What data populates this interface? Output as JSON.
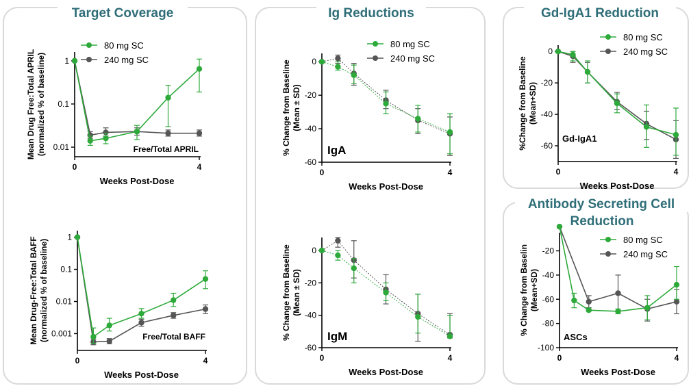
{
  "panels": {
    "target_coverage": {
      "title": "Target Coverage"
    },
    "ig_reductions": {
      "title": "Ig Reductions"
    },
    "gd_iga1": {
      "title": "Gd-IgA1  Reduction"
    },
    "asc": {
      "title_line1": "Antibody  Secreting Cell",
      "title_line2": "Reduction"
    }
  },
  "colors": {
    "series_80": "#2eaa3b",
    "series_240": "#555555",
    "title": "#2f6e78"
  },
  "chart_data": [
    {
      "id": "april",
      "type": "line",
      "yscale": "log",
      "xlabel": "Weeks Post-Dose",
      "ylabel_lines": [
        "Mean Drug Free:Total APRIL",
        "(normalized % of baseline)"
      ],
      "annotation": "Free/Total APRIL",
      "ylim": [
        0.006,
        1.6
      ],
      "yticks": [
        1,
        0.1,
        0.01
      ],
      "ytick_labels": [
        "1",
        "0.1",
        "0.01"
      ],
      "xlim": [
        0,
        4
      ],
      "xticks": [
        0,
        4
      ],
      "xtick_labels": [
        "0",
        "4"
      ],
      "legend": "top-right",
      "series": [
        {
          "name": "80 mg SC",
          "color": "#2eaa3b",
          "x": [
            0,
            0.5,
            1,
            2,
            3,
            4
          ],
          "y": [
            1,
            0.014,
            0.016,
            0.023,
            0.14,
            0.65
          ],
          "lo": [
            null,
            0.011,
            0.012,
            0.015,
            0.03,
            0.19
          ],
          "hi": [
            null,
            0.018,
            0.021,
            0.032,
            0.27,
            1.1
          ]
        },
        {
          "name": "240 mg SC",
          "color": "#555555",
          "x": [
            0,
            0.5,
            1,
            2,
            3,
            4
          ],
          "y": [
            1,
            0.019,
            0.022,
            0.023,
            0.021,
            0.021
          ],
          "lo": [
            null,
            0.016,
            0.018,
            0.019,
            0.018,
            0.018
          ],
          "hi": [
            null,
            0.023,
            0.028,
            0.028,
            0.025,
            0.025
          ]
        }
      ]
    },
    {
      "id": "baff",
      "type": "line",
      "yscale": "log",
      "xlabel": "Weeks Post-Dose",
      "ylabel_lines": [
        "Mean Drug-Free:Total BAFF",
        "(normalized % of baseline)"
      ],
      "annotation": "Free/Total BAFF",
      "ylim": [
        0.0003,
        1.6
      ],
      "yticks": [
        1,
        0.1,
        0.01,
        0.001
      ],
      "ytick_labels": [
        "1",
        "0.1",
        "0.01",
        "0.001"
      ],
      "xlim": [
        0,
        4
      ],
      "xticks": [
        0,
        4
      ],
      "xtick_labels": [
        "0",
        "4"
      ],
      "legend": "none",
      "series": [
        {
          "name": "80 mg SC",
          "color": "#2eaa3b",
          "x": [
            0,
            0.5,
            1,
            2,
            3,
            4
          ],
          "y": [
            1,
            0.0008,
            0.0018,
            0.0042,
            0.011,
            0.05
          ],
          "lo": [
            null,
            0.0005,
            0.0012,
            0.003,
            0.007,
            0.025
          ],
          "hi": [
            null,
            0.0015,
            0.003,
            0.006,
            0.018,
            0.09
          ]
        },
        {
          "name": "240 mg SC",
          "color": "#555555",
          "x": [
            0,
            0.5,
            1,
            2,
            3,
            4
          ],
          "y": [
            1,
            0.00055,
            0.00058,
            0.0022,
            0.0037,
            0.0058
          ],
          "lo": [
            null,
            0.00045,
            0.00048,
            0.0017,
            0.003,
            0.0042
          ],
          "hi": [
            null,
            0.00068,
            0.0007,
            0.0028,
            0.0045,
            0.0078
          ]
        }
      ]
    },
    {
      "id": "iga",
      "type": "line",
      "yscale": "linear",
      "xlabel": "Weeks Post-Dose",
      "ylabel_lines": [
        "% Change from Baseline",
        "(Mean ± SD)"
      ],
      "annotation": "IgA",
      "ylim": [
        -60,
        5
      ],
      "yticks": [
        0,
        -20,
        -40,
        -60
      ],
      "ytick_labels": [
        "0",
        "-20",
        "-40",
        "-60"
      ],
      "xlim": [
        0,
        4
      ],
      "xticks": [
        0,
        4
      ],
      "xtick_labels": [
        "0",
        "4"
      ],
      "legend": "top-right",
      "series": [
        {
          "name": "80 mg SC",
          "color": "#2eaa3b",
          "x": [
            0,
            0.5,
            1,
            2,
            3,
            4
          ],
          "y": [
            0,
            -3,
            -8,
            -25,
            -34,
            -42
          ],
          "lo": [
            null,
            -5,
            -13,
            -31,
            -42,
            -55
          ],
          "hi": [
            null,
            0,
            -2,
            -18,
            -26,
            -31
          ]
        },
        {
          "name": "240 mg SC",
          "color": "#555555",
          "x": [
            0,
            0.5,
            1,
            2,
            3,
            4
          ],
          "y": [
            0,
            2,
            -7,
            -23,
            -35,
            -43
          ],
          "lo": [
            null,
            -1,
            -14,
            -28,
            -43,
            -56
          ],
          "hi": [
            null,
            4,
            -1,
            -17,
            -28,
            -33
          ]
        }
      ]
    },
    {
      "id": "igm",
      "type": "line",
      "yscale": "linear",
      "xlabel": "Weeks Post-Dose",
      "ylabel_lines": [
        "% Change from Baseline",
        "(Mean ± SD)"
      ],
      "annotation": "IgM",
      "ylim": [
        -60,
        8
      ],
      "yticks": [
        0,
        -20,
        -40,
        -60
      ],
      "ytick_labels": [
        "0",
        "-20",
        "-40",
        "-60"
      ],
      "xlim": [
        0,
        4
      ],
      "xticks": [
        0,
        4
      ],
      "xtick_labels": [
        "0",
        "4"
      ],
      "legend": "none",
      "series": [
        {
          "name": "80 mg SC",
          "color": "#2eaa3b",
          "x": [
            0,
            0.5,
            1,
            2,
            3,
            4
          ],
          "y": [
            0,
            -3,
            -11,
            -26,
            -41,
            -53
          ],
          "lo": [
            null,
            -6,
            -20,
            -31,
            -51,
            -53
          ],
          "hi": [
            null,
            0,
            -5,
            -20,
            -27,
            -40
          ]
        },
        {
          "name": "240 mg SC",
          "color": "#555555",
          "x": [
            0,
            0.5,
            1,
            2,
            3,
            4
          ],
          "y": [
            0,
            6,
            -6,
            -24,
            -39,
            -52
          ],
          "lo": [
            null,
            2,
            -17,
            -33,
            -56,
            -54
          ],
          "hi": [
            null,
            8,
            6,
            -15,
            -27,
            -39
          ]
        }
      ]
    },
    {
      "id": "gdiga1",
      "type": "line",
      "yscale": "linear",
      "xlabel": "Weeks Post-Dose",
      "ylabel_lines": [
        "%Change from Baseline",
        "(Mean+SD)"
      ],
      "annotation": "Gd-IgA1",
      "ylim": [
        -70,
        4
      ],
      "yticks": [
        0,
        -20,
        -40,
        -60
      ],
      "ytick_labels": [
        "0",
        "-20",
        "-40",
        "-60"
      ],
      "xlim": [
        0,
        4
      ],
      "xticks": [
        0,
        4
      ],
      "xtick_labels": [
        "0",
        "4"
      ],
      "legend": "top-right",
      "series": [
        {
          "name": "80 mg SC",
          "color": "#2eaa3b",
          "x": [
            0,
            0.5,
            1,
            2,
            3,
            4
          ],
          "y": [
            0,
            -2,
            -13,
            -33,
            -48,
            -53
          ],
          "lo": [
            null,
            -6,
            -20,
            -39,
            -61,
            -66
          ],
          "hi": [
            null,
            0,
            -6,
            -27,
            -34,
            -36
          ]
        },
        {
          "name": "240 mg SC",
          "color": "#555555",
          "x": [
            0,
            0.5,
            1,
            2,
            3,
            4
          ],
          "y": [
            0,
            -3,
            -13,
            -32,
            -46,
            -56
          ],
          "lo": [
            null,
            -7,
            -20,
            -37,
            -56,
            -68
          ],
          "hi": [
            null,
            0,
            -7,
            -26,
            -38,
            -44
          ]
        }
      ]
    },
    {
      "id": "asc",
      "type": "line",
      "yscale": "linear",
      "xlabel": "Weeks Post-Dose",
      "ylabel_lines": [
        "% Change from Baselin",
        "(Mean+SD)"
      ],
      "annotation": "ASCs",
      "ylim": [
        -100,
        -5
      ],
      "yticks": [
        -20,
        -40,
        -60,
        -80,
        -100
      ],
      "ytick_labels": [
        "-20",
        "-40",
        "-60",
        "-80",
        "-100"
      ],
      "xlim": [
        0,
        4
      ],
      "xticks": [
        0,
        4
      ],
      "xtick_labels": [
        "0",
        "4"
      ],
      "legend": "top-right",
      "series": [
        {
          "name": "80 mg SC",
          "color": "#2eaa3b",
          "x": [
            0,
            0.5,
            1,
            2,
            3,
            4
          ],
          "y": [
            0,
            -61,
            -69,
            -70,
            -67,
            -48
          ],
          "lo": [
            null,
            -67,
            -70,
            -72,
            -77,
            -60
          ],
          "hi": [
            null,
            -55,
            -68,
            -68,
            -57,
            -33
          ]
        },
        {
          "name": "240 mg SC",
          "color": "#555555",
          "x": [
            0,
            1,
            2,
            3,
            4
          ],
          "y": [
            0,
            -62,
            -55,
            -68,
            -62
          ],
          "lo": [
            null,
            -67,
            -70,
            -78,
            -72
          ],
          "hi": [
            null,
            -57,
            -40,
            -60,
            -52
          ]
        }
      ]
    }
  ]
}
